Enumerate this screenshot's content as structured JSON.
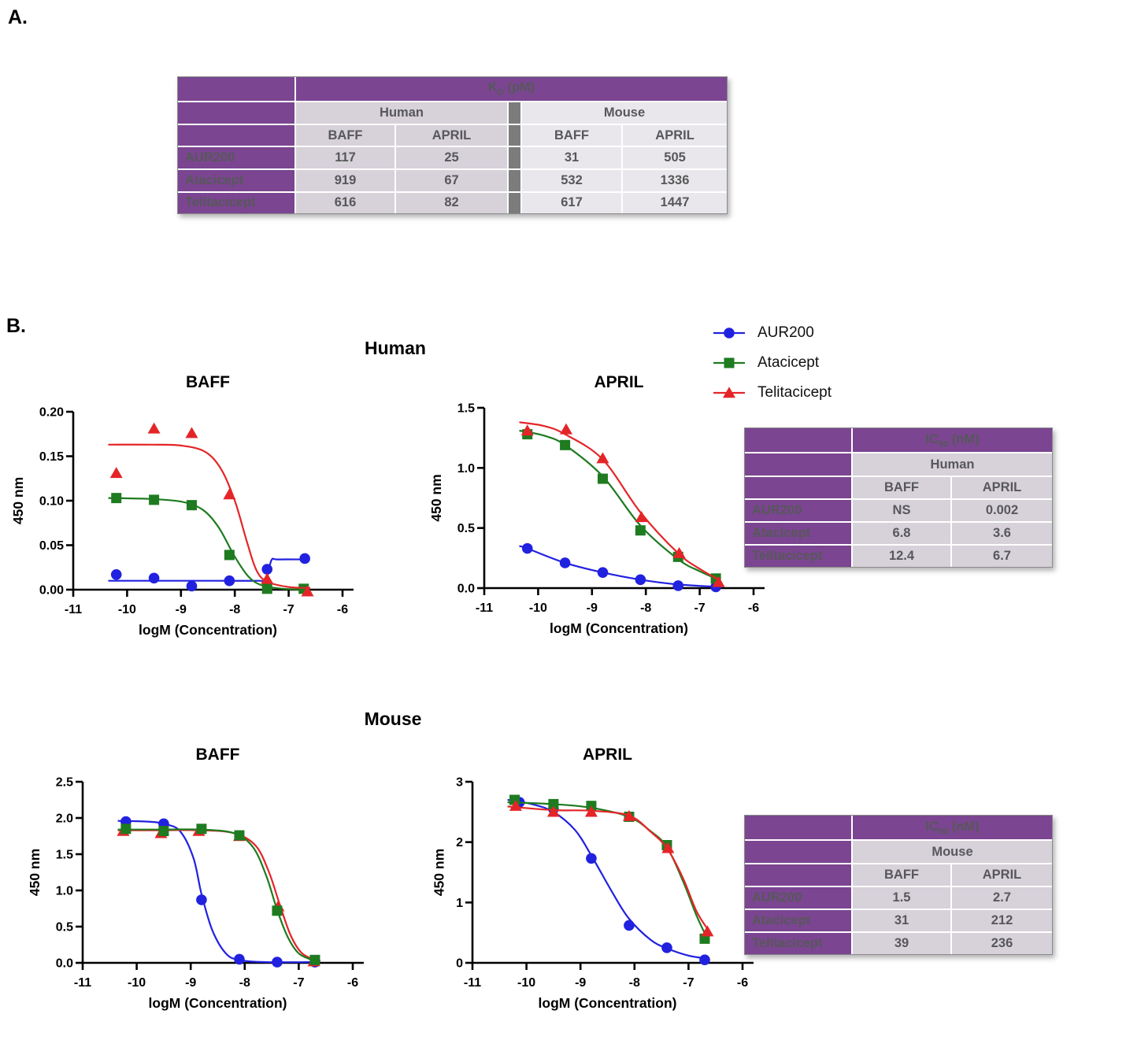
{
  "panels": {
    "a_label": "A.",
    "b_label": "B."
  },
  "sections": {
    "human": "Human",
    "mouse": "Mouse"
  },
  "colors": {
    "purple": "#7B4591",
    "human_cell": "#D7D1DA",
    "mouse_cell": "#E9E7EB",
    "separator_gray": "#7C7C7C",
    "cell_text": "#57585A",
    "aur200_blue": "#2121E0",
    "atacicept_green": "#1E7B20",
    "telitacicept_red": "#E42528"
  },
  "kd_table": {
    "title_main": "K",
    "title_sub": "D",
    "title_rest": " (pM)",
    "groups": [
      "Human",
      "Mouse"
    ],
    "col_headers": [
      "BAFF",
      "APRIL",
      "BAFF",
      "APRIL"
    ],
    "rows": [
      {
        "label": "AUR200",
        "values": [
          "117",
          "25",
          "31",
          "505"
        ]
      },
      {
        "label": "Atacicept",
        "values": [
          "919",
          "67",
          "532",
          "1336"
        ]
      },
      {
        "label": "Telitacicept",
        "values": [
          "616",
          "82",
          "617",
          "1447"
        ]
      }
    ]
  },
  "legend": {
    "items": [
      {
        "label": "AUR200",
        "marker": "circle",
        "color": "#2121E0"
      },
      {
        "label": "Atacicept",
        "marker": "square",
        "color": "#1E7B20"
      },
      {
        "label": "Telitacicept",
        "marker": "triangle",
        "color": "#E42528"
      }
    ]
  },
  "ic50_tables": [
    {
      "title_main": "IC",
      "title_sub": "50",
      "title_rest": " (nM)",
      "group": "Human",
      "col_headers": [
        "BAFF",
        "APRIL"
      ],
      "rows": [
        [
          "AUR200",
          "NS",
          "0.002"
        ],
        [
          "Atacicept",
          "6.8",
          "3.6"
        ],
        [
          "Telitacicept",
          "12.4",
          "6.7"
        ]
      ]
    },
    {
      "title_main": "IC",
      "title_sub": "50",
      "title_rest": " (nM)",
      "group": "Mouse",
      "col_headers": [
        "BAFF",
        "APRIL"
      ],
      "rows": [
        [
          "AUR200",
          "1.5",
          "2.7"
        ],
        [
          "Atacicept",
          "31",
          "212"
        ],
        [
          "Telitacicept",
          "39",
          "236"
        ]
      ]
    }
  ],
  "chart_data": [
    {
      "id": "human-baff",
      "type": "line",
      "title": "BAFF",
      "xlabel": "logM (Concentration)",
      "ylabel": "450 nm",
      "xlim": [
        -11,
        -6
      ],
      "xticks": [
        -11,
        -10,
        -9,
        -8,
        -7,
        -6
      ],
      "ylim": [
        0,
        0.2
      ],
      "yticks": [
        0,
        0.05,
        0.1,
        0.15,
        0.2
      ],
      "ytick_decimals": 2,
      "grid": false,
      "series": [
        {
          "name": "AUR200",
          "color": "#2121E0",
          "marker": "circle",
          "x": [
            -10.2,
            -9.5,
            -8.8,
            -8.1,
            -7.4,
            -6.7
          ],
          "y": [
            0.017,
            0.013,
            0.004,
            0.01,
            0.023,
            0.035
          ],
          "curve": [
            [
              -10.35,
              0.01
            ],
            [
              -9.3,
              0.01
            ],
            [
              -8.3,
              0.01
            ],
            [
              -7.55,
              0.01
            ],
            [
              -7.42,
              0.011
            ],
            [
              -7.32,
              0.033
            ],
            [
              -7.2,
              0.034
            ],
            [
              -6.65,
              0.034
            ]
          ]
        },
        {
          "name": "Atacicept",
          "color": "#1E7B20",
          "marker": "square",
          "x": [
            -10.2,
            -9.5,
            -8.8,
            -8.1,
            -7.4,
            -6.72
          ],
          "y": [
            0.103,
            0.101,
            0.095,
            0.039,
            0.001,
            0.001
          ],
          "curve": [
            [
              -10.35,
              0.103
            ],
            [
              -9.6,
              0.102
            ],
            [
              -9.0,
              0.099
            ],
            [
              -8.6,
              0.09
            ],
            [
              -8.3,
              0.07
            ],
            [
              -8.0,
              0.037
            ],
            [
              -7.75,
              0.015
            ],
            [
              -7.5,
              0.005
            ],
            [
              -7.1,
              0.001
            ],
            [
              -6.65,
              0.0
            ]
          ]
        },
        {
          "name": "Telitacicept",
          "color": "#E42528",
          "marker": "triangle",
          "x": [
            -10.2,
            -9.5,
            -8.8,
            -8.1,
            -7.4,
            -6.65
          ],
          "y": [
            0.131,
            0.181,
            0.176,
            0.107,
            0.012,
            -0.002
          ],
          "curve": [
            [
              -10.35,
              0.163
            ],
            [
              -9.5,
              0.163
            ],
            [
              -9.0,
              0.162
            ],
            [
              -8.55,
              0.155
            ],
            [
              -8.25,
              0.135
            ],
            [
              -8.0,
              0.1
            ],
            [
              -7.78,
              0.055
            ],
            [
              -7.6,
              0.022
            ],
            [
              -7.4,
              0.009
            ],
            [
              -7.0,
              0.003
            ],
            [
              -6.6,
              0.002
            ]
          ]
        }
      ]
    },
    {
      "id": "human-april",
      "type": "line",
      "title": "APRIL",
      "xlabel": "logM (Concentration)",
      "ylabel": "450 nm",
      "xlim": [
        -11,
        -6
      ],
      "xticks": [
        -11,
        -10,
        -9,
        -8,
        -7,
        -6
      ],
      "ylim": [
        0,
        1.5
      ],
      "yticks": [
        0,
        0.5,
        1.0,
        1.5
      ],
      "ytick_decimals": 1,
      "grid": false,
      "series": [
        {
          "name": "AUR200",
          "color": "#2121E0",
          "marker": "circle",
          "x": [
            -10.2,
            -9.5,
            -8.8,
            -8.1,
            -7.4,
            -6.7
          ],
          "y": [
            0.33,
            0.21,
            0.13,
            0.07,
            0.02,
            0.01
          ],
          "curve": [
            [
              -10.35,
              0.35
            ],
            [
              -10.2,
              0.33
            ],
            [
              -9.5,
              0.21
            ],
            [
              -8.8,
              0.13
            ],
            [
              -8.1,
              0.07
            ],
            [
              -7.4,
              0.03
            ],
            [
              -6.65,
              0.01
            ]
          ]
        },
        {
          "name": "Atacicept",
          "color": "#1E7B20",
          "marker": "square",
          "x": [
            -10.2,
            -9.5,
            -8.8,
            -8.1,
            -7.4,
            -6.7
          ],
          "y": [
            1.28,
            1.19,
            0.91,
            0.48,
            0.26,
            0.08
          ],
          "curve": [
            [
              -10.35,
              1.31
            ],
            [
              -9.9,
              1.27
            ],
            [
              -9.5,
              1.19
            ],
            [
              -8.8,
              0.93
            ],
            [
              -8.1,
              0.52
            ],
            [
              -7.4,
              0.24
            ],
            [
              -7.0,
              0.14
            ],
            [
              -6.65,
              0.07
            ]
          ]
        },
        {
          "name": "Telitacicept",
          "color": "#E42528",
          "marker": "triangle",
          "x": [
            -10.2,
            -9.48,
            -8.8,
            -8.08,
            -7.38,
            -6.65
          ],
          "y": [
            1.31,
            1.32,
            1.08,
            0.59,
            0.29,
            0.05
          ],
          "curve": [
            [
              -10.35,
              1.38
            ],
            [
              -9.9,
              1.35
            ],
            [
              -9.5,
              1.28
            ],
            [
              -8.8,
              1.07
            ],
            [
              -8.1,
              0.63
            ],
            [
              -7.4,
              0.29
            ],
            [
              -7.0,
              0.16
            ],
            [
              -6.65,
              0.07
            ]
          ]
        }
      ]
    },
    {
      "id": "mouse-baff",
      "type": "line",
      "title": "BAFF",
      "xlabel": "logM  (Concentration)",
      "ylabel": "450 nm",
      "xlim": [
        -11,
        -6
      ],
      "xticks": [
        -11,
        -10,
        -9,
        -8,
        -7,
        -6
      ],
      "ylim": [
        0,
        2.5
      ],
      "yticks": [
        0,
        0.5,
        1.0,
        1.5,
        2.0,
        2.5
      ],
      "ytick_decimals": 1,
      "grid": false,
      "series": [
        {
          "name": "AUR200",
          "color": "#2121E0",
          "marker": "circle",
          "x": [
            -10.2,
            -9.5,
            -8.8,
            -8.1,
            -7.4,
            -6.7
          ],
          "y": [
            1.95,
            1.92,
            0.87,
            0.05,
            0.01,
            0.01
          ],
          "curve": [
            [
              -10.35,
              1.96
            ],
            [
              -9.8,
              1.95
            ],
            [
              -9.5,
              1.92
            ],
            [
              -9.2,
              1.82
            ],
            [
              -8.95,
              1.45
            ],
            [
              -8.8,
              0.95
            ],
            [
              -8.6,
              0.45
            ],
            [
              -8.35,
              0.13
            ],
            [
              -8.1,
              0.04
            ],
            [
              -7.6,
              0.01
            ],
            [
              -6.65,
              0.01
            ]
          ]
        },
        {
          "name": "Telitacicept",
          "color": "#E42528",
          "marker": "triangle",
          "x": [
            -10.25,
            -9.55,
            -8.85,
            -8.1,
            -7.38,
            -6.72
          ],
          "y": [
            1.82,
            1.79,
            1.82,
            1.75,
            0.78,
            0.02
          ],
          "curve": [
            [
              -10.35,
              1.83
            ],
            [
              -9.5,
              1.83
            ],
            [
              -8.8,
              1.83
            ],
            [
              -8.2,
              1.79
            ],
            [
              -7.8,
              1.62
            ],
            [
              -7.55,
              1.25
            ],
            [
              -7.35,
              0.8
            ],
            [
              -7.15,
              0.38
            ],
            [
              -6.95,
              0.14
            ],
            [
              -6.7,
              0.04
            ],
            [
              -6.6,
              0.03
            ]
          ]
        },
        {
          "name": "Atacicept",
          "color": "#1E7B20",
          "marker": "square",
          "x": [
            -10.2,
            -9.5,
            -8.8,
            -8.1,
            -7.4,
            -6.7
          ],
          "y": [
            1.85,
            1.82,
            1.85,
            1.76,
            0.72,
            0.04
          ],
          "curve": [
            [
              -10.35,
              1.84
            ],
            [
              -9.5,
              1.84
            ],
            [
              -8.8,
              1.84
            ],
            [
              -8.2,
              1.79
            ],
            [
              -7.85,
              1.6
            ],
            [
              -7.6,
              1.2
            ],
            [
              -7.4,
              0.73
            ],
            [
              -7.2,
              0.35
            ],
            [
              -7.0,
              0.13
            ],
            [
              -6.75,
              0.04
            ],
            [
              -6.6,
              0.02
            ]
          ]
        }
      ]
    },
    {
      "id": "mouse-april",
      "type": "line",
      "title": "APRIL",
      "xlabel": "logM (Concentration)",
      "ylabel": "450 nm",
      "xlim": [
        -11,
        -6
      ],
      "xticks": [
        -11,
        -10,
        -9,
        -8,
        -7,
        -6
      ],
      "ylim": [
        0,
        3
      ],
      "yticks": [
        0,
        1,
        2,
        3
      ],
      "ytick_decimals": 0,
      "grid": false,
      "series": [
        {
          "name": "AUR200",
          "color": "#2121E0",
          "marker": "circle",
          "x": [
            -10.13,
            -9.5,
            -8.8,
            -8.1,
            -7.4,
            -6.7
          ],
          "y": [
            2.66,
            2.55,
            1.73,
            0.62,
            0.25,
            0.05
          ],
          "curve": [
            [
              -10.35,
              2.7
            ],
            [
              -9.9,
              2.63
            ],
            [
              -9.5,
              2.5
            ],
            [
              -9.1,
              2.2
            ],
            [
              -8.8,
              1.78
            ],
            [
              -8.4,
              1.15
            ],
            [
              -8.1,
              0.73
            ],
            [
              -7.7,
              0.38
            ],
            [
              -7.4,
              0.24
            ],
            [
              -7.0,
              0.12
            ],
            [
              -6.65,
              0.07
            ]
          ]
        },
        {
          "name": "Atacicept",
          "color": "#1E7B20",
          "marker": "square",
          "x": [
            -10.22,
            -9.5,
            -8.8,
            -8.1,
            -7.4,
            -6.7
          ],
          "y": [
            2.7,
            2.63,
            2.6,
            2.42,
            1.95,
            0.4
          ],
          "curve": [
            [
              -10.35,
              2.66
            ],
            [
              -9.5,
              2.63
            ],
            [
              -8.8,
              2.57
            ],
            [
              -8.1,
              2.42
            ],
            [
              -7.7,
              2.18
            ],
            [
              -7.4,
              1.92
            ],
            [
              -7.1,
              1.35
            ],
            [
              -6.85,
              0.78
            ],
            [
              -6.65,
              0.4
            ]
          ]
        },
        {
          "name": "Telitacicept",
          "color": "#E42528",
          "marker": "triangle",
          "x": [
            -10.2,
            -9.5,
            -8.8,
            -8.1,
            -7.38,
            -6.65
          ],
          "y": [
            2.6,
            2.5,
            2.5,
            2.43,
            1.9,
            0.52
          ],
          "curve": [
            [
              -10.35,
              2.59
            ],
            [
              -9.5,
              2.53
            ],
            [
              -8.8,
              2.52
            ],
            [
              -8.1,
              2.44
            ],
            [
              -7.7,
              2.17
            ],
            [
              -7.4,
              1.9
            ],
            [
              -7.1,
              1.4
            ],
            [
              -6.85,
              0.85
            ],
            [
              -6.6,
              0.5
            ]
          ]
        }
      ]
    }
  ]
}
